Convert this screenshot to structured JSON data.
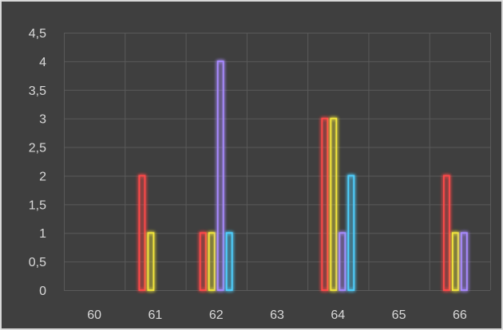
{
  "chart_data": {
    "type": "bar",
    "title": "",
    "xlabel": "",
    "ylabel": "",
    "categories": [
      "60",
      "61",
      "62",
      "63",
      "64",
      "65",
      "66"
    ],
    "ylim": [
      0,
      4.5
    ],
    "y_ticks": [
      "0",
      "0,5",
      "1",
      "1,5",
      "2",
      "2,5",
      "3",
      "3,5",
      "4",
      "4,5"
    ],
    "y_tick_values": [
      0,
      0.5,
      1,
      1.5,
      2,
      2.5,
      3,
      3.5,
      4,
      4.5
    ],
    "grid": true,
    "legend": "none",
    "bar_style": "glow outline",
    "series": [
      {
        "values": [
          0,
          2,
          1,
          0,
          3,
          0,
          2
        ],
        "color": "#ff4a4a"
      },
      {
        "values": [
          0,
          1,
          1,
          0,
          3,
          0,
          1
        ],
        "color": "#f2e63c"
      },
      {
        "values": [
          0,
          0,
          4,
          0,
          1,
          0,
          1
        ],
        "color": "#a98bff"
      },
      {
        "values": [
          0,
          0,
          1,
          0,
          2,
          0,
          0
        ],
        "color": "#4fd0ff"
      }
    ],
    "background_color": "#3f3f3f",
    "grid_color": "#5a5a5a",
    "text_color": "#d9d9d9"
  }
}
